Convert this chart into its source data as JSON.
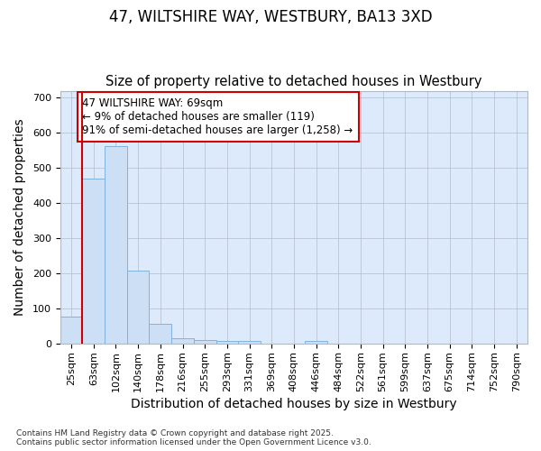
{
  "title_line1": "47, WILTSHIRE WAY, WESTBURY, BA13 3XD",
  "title_line2": "Size of property relative to detached houses in Westbury",
  "xlabel": "Distribution of detached houses by size in Westbury",
  "ylabel": "Number of detached properties",
  "bar_color": "#ccdff5",
  "bar_edge_color": "#7fb3e0",
  "vline_color": "#cc0000",
  "vline_x": 0.5,
  "categories": [
    "25sqm",
    "63sqm",
    "102sqm",
    "140sqm",
    "178sqm",
    "216sqm",
    "255sqm",
    "293sqm",
    "331sqm",
    "369sqm",
    "408sqm",
    "446sqm",
    "484sqm",
    "522sqm",
    "561sqm",
    "599sqm",
    "637sqm",
    "675sqm",
    "714sqm",
    "752sqm",
    "790sqm"
  ],
  "values": [
    78,
    470,
    562,
    208,
    57,
    15,
    10,
    9,
    9,
    0,
    0,
    8,
    0,
    0,
    0,
    0,
    0,
    0,
    0,
    0,
    0
  ],
  "ylim": [
    0,
    720
  ],
  "yticks": [
    0,
    100,
    200,
    300,
    400,
    500,
    600,
    700
  ],
  "annotation_text": "47 WILTSHIRE WAY: 69sqm\n← 9% of detached houses are smaller (119)\n91% of semi-detached houses are larger (1,258) →",
  "annotation_box_color": "#ffffff",
  "annotation_box_edge": "#cc0000",
  "fig_background_color": "#ffffff",
  "background_color": "#ddeafc",
  "footnote": "Contains HM Land Registry data © Crown copyright and database right 2025.\nContains public sector information licensed under the Open Government Licence v3.0.",
  "title_fontsize": 12,
  "subtitle_fontsize": 10.5,
  "axis_label_fontsize": 10,
  "tick_fontsize": 8,
  "annot_fontsize": 8.5
}
